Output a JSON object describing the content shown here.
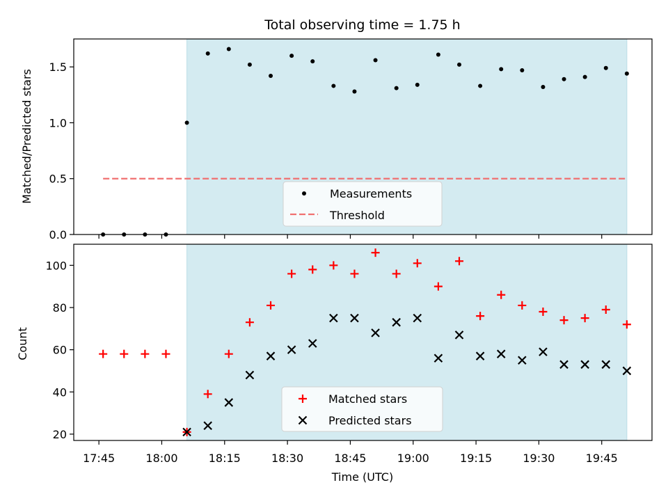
{
  "title": "Total observing time = 1.75 h",
  "chart_data": [
    {
      "type": "scatter",
      "ylabel": "Matched/Predicted stars",
      "ylim": [
        0,
        1.75
      ],
      "yticks": [
        0.0,
        0.5,
        1.0,
        1.5
      ],
      "ytick_labels": [
        "0.0",
        "0.5",
        "1.0",
        "1.5"
      ],
      "shaded_region": {
        "from": "18:06",
        "to": "19:51",
        "color": "#d4ebf1"
      },
      "series": [
        {
          "name": "Measurements",
          "kind": "scatter",
          "marker": "dot",
          "color": "#000000",
          "x": [
            "17:46",
            "17:51",
            "17:56",
            "18:01",
            "18:06",
            "18:11",
            "18:16",
            "18:21",
            "18:26",
            "18:31",
            "18:36",
            "18:41",
            "18:46",
            "18:51",
            "18:56",
            "19:01",
            "19:06",
            "19:11",
            "19:16",
            "19:21",
            "19:26",
            "19:31",
            "19:36",
            "19:41",
            "19:46",
            "19:51"
          ],
          "y": [
            0.0,
            0.0,
            0.0,
            0.0,
            1.0,
            1.62,
            1.66,
            1.52,
            1.42,
            1.6,
            1.55,
            1.33,
            1.28,
            1.56,
            1.31,
            1.34,
            1.61,
            1.52,
            1.33,
            1.48,
            1.47,
            1.32,
            1.39,
            1.41,
            1.49,
            1.44
          ]
        },
        {
          "name": "Threshold",
          "kind": "line",
          "style": "dashed",
          "color": "#f07070",
          "x": [
            "17:46",
            "19:51"
          ],
          "y": [
            0.5,
            0.5
          ]
        }
      ],
      "legend": {
        "placement": "lower-center"
      }
    },
    {
      "type": "scatter",
      "xlabel": "Time (UTC)",
      "ylabel": "Count",
      "ylim": [
        17,
        110
      ],
      "yticks": [
        20,
        40,
        60,
        80,
        100
      ],
      "ytick_labels": [
        "20",
        "40",
        "60",
        "80",
        "100"
      ],
      "xticks": [
        "17:45",
        "18:00",
        "18:15",
        "18:30",
        "18:45",
        "19:00",
        "19:15",
        "19:30",
        "19:45"
      ],
      "xlim": [
        "17:39",
        "19:57"
      ],
      "shaded_region": {
        "from": "18:06",
        "to": "19:51",
        "color": "#d4ebf1"
      },
      "series": [
        {
          "name": "Matched stars",
          "kind": "scatter",
          "marker": "plus",
          "color": "#ff0000",
          "x": [
            "17:46",
            "17:51",
            "17:56",
            "18:01",
            "18:06",
            "18:11",
            "18:16",
            "18:21",
            "18:26",
            "18:31",
            "18:36",
            "18:41",
            "18:46",
            "18:51",
            "18:56",
            "19:01",
            "19:06",
            "19:11",
            "19:16",
            "19:21",
            "19:26",
            "19:31",
            "19:36",
            "19:41",
            "19:46",
            "19:51"
          ],
          "y": [
            58,
            58,
            58,
            58,
            21,
            39,
            58,
            73,
            81,
            96,
            98,
            100,
            96,
            106,
            96,
            101,
            90,
            102,
            76,
            86,
            81,
            78,
            74,
            75,
            79,
            72
          ]
        },
        {
          "name": "Predicted stars",
          "kind": "scatter",
          "marker": "x",
          "color": "#000000",
          "x": [
            "18:06",
            "18:11",
            "18:16",
            "18:21",
            "18:26",
            "18:31",
            "18:36",
            "18:41",
            "18:46",
            "18:51",
            "18:56",
            "19:01",
            "19:06",
            "19:11",
            "19:16",
            "19:21",
            "19:26",
            "19:31",
            "19:36",
            "19:41",
            "19:46",
            "19:51"
          ],
          "y": [
            21,
            24,
            35,
            48,
            57,
            60,
            63,
            75,
            75,
            68,
            73,
            75,
            56,
            67,
            57,
            58,
            55,
            59,
            53,
            53,
            53,
            50
          ]
        }
      ],
      "legend": {
        "placement": "lower-center"
      }
    }
  ]
}
